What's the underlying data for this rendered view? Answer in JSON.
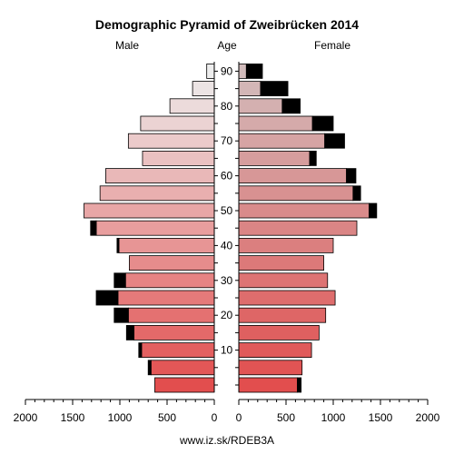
{
  "chart_data": {
    "type": "bar",
    "subtype": "population-pyramid",
    "title": "Demographic Pyramid of Zweibrücken 2014",
    "left_label": "Male",
    "center_label": "Age",
    "right_label": "Female",
    "footer": "www.iz.sk/RDEB3A",
    "age_tick_labels": [
      "10",
      "20",
      "30",
      "40",
      "50",
      "60",
      "70",
      "80",
      "90"
    ],
    "x_tick_labels": [
      "2000",
      "1500",
      "1000",
      "500",
      "0"
    ],
    "xlim": [
      0,
      2000
    ],
    "age_groups": [
      "0-4",
      "5-9",
      "10-14",
      "15-19",
      "20-24",
      "25-29",
      "30-34",
      "35-39",
      "40-44",
      "45-49",
      "50-54",
      "55-59",
      "60-64",
      "65-69",
      "70-74",
      "75-79",
      "80-84",
      "85-89",
      "90+"
    ],
    "series": [
      {
        "name": "Male",
        "values": [
          630,
          670,
          770,
          850,
          910,
          1020,
          940,
          900,
          1010,
          1250,
          1380,
          1210,
          1150,
          760,
          910,
          780,
          470,
          230,
          80
        ]
      },
      {
        "name": "Male excess",
        "values": [
          0,
          30,
          30,
          80,
          150,
          230,
          120,
          0,
          20,
          60,
          0,
          0,
          0,
          0,
          0,
          0,
          0,
          0,
          0
        ]
      },
      {
        "name": "Female",
        "values": [
          620,
          670,
          770,
          850,
          920,
          1020,
          940,
          900,
          1000,
          1250,
          1380,
          1210,
          1140,
          750,
          910,
          780,
          460,
          230,
          80
        ]
      },
      {
        "name": "Female excess",
        "values": [
          40,
          0,
          0,
          0,
          0,
          0,
          0,
          0,
          0,
          0,
          80,
          80,
          100,
          70,
          210,
          220,
          190,
          290,
          170
        ]
      }
    ],
    "colors": {
      "male_young": "#e24e4e",
      "male_old": "#ededed",
      "female_young": "#e24e4e",
      "female_old": "#d2bcbc",
      "excess": "#000000"
    }
  }
}
